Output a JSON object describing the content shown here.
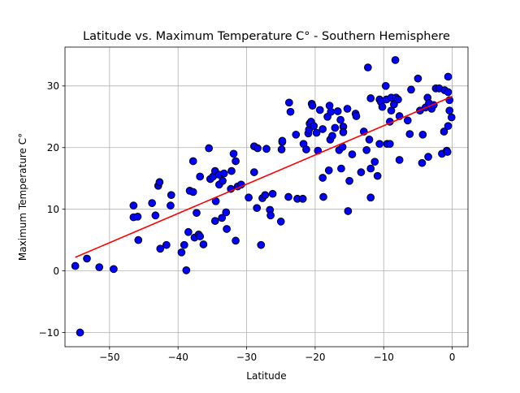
{
  "chart_data": {
    "type": "scatter",
    "title": "Latitude vs. Maximum Temperature C° - Southern Hemisphere",
    "xlabel": "Latitude",
    "ylabel": "Maximum Temperature C°",
    "xlim": [
      -56.5,
      2.3
    ],
    "ylim": [
      -12.3,
      36.3
    ],
    "xticks": [
      -50,
      -40,
      -30,
      -20,
      -10,
      0
    ],
    "xtick_labels": [
      "−50",
      "−40",
      "−30",
      "−20",
      "−10",
      "0"
    ],
    "yticks": [
      -10,
      0,
      10,
      20,
      30
    ],
    "ytick_labels": [
      "−10",
      "0",
      "10",
      "20",
      "30"
    ],
    "grid": true,
    "legend": false,
    "colors": {
      "points": "#0000ff",
      "point_edge": "#000000",
      "regression": "#ff0000",
      "grid": "#b0b0b0"
    },
    "regression_line": {
      "x": [
        -55,
        0
      ],
      "y": [
        2.2,
        28.3
      ]
    },
    "series": [
      {
        "points": [
          [
            -55,
            0.8
          ],
          [
            -54.3,
            -10
          ],
          [
            -53.3,
            2
          ],
          [
            -51.5,
            0.6
          ],
          [
            -49.4,
            0.3
          ],
          [
            -46.5,
            8.7
          ],
          [
            -46.5,
            10.6
          ],
          [
            -45.9,
            8.8
          ],
          [
            -45.8,
            5
          ],
          [
            -43.8,
            11
          ],
          [
            -43.3,
            9
          ],
          [
            -42.9,
            13.8
          ],
          [
            -42.7,
            14.4
          ],
          [
            -42.6,
            3.6
          ],
          [
            -41.7,
            4.2
          ],
          [
            -41.1,
            10.6
          ],
          [
            -41,
            12.3
          ],
          [
            -39.5,
            3
          ],
          [
            -39.1,
            4.2
          ],
          [
            -38.8,
            0.1
          ],
          [
            -38.5,
            6.3
          ],
          [
            -38.3,
            13
          ],
          [
            -37.8,
            17.8
          ],
          [
            -37.8,
            12.8
          ],
          [
            -37.6,
            5.4
          ],
          [
            -37.3,
            9.4
          ],
          [
            -37,
            5.9
          ],
          [
            -36.8,
            5.6
          ],
          [
            -36.8,
            15.3
          ],
          [
            -36.3,
            4.3
          ],
          [
            -35.5,
            19.9
          ],
          [
            -35.3,
            14.9
          ],
          [
            -34.9,
            15.3
          ],
          [
            -34.6,
            16.2
          ],
          [
            -34.6,
            8.1
          ],
          [
            -34.5,
            11.3
          ],
          [
            -34,
            14
          ],
          [
            -34,
            15.6
          ],
          [
            -33.6,
            8.6
          ],
          [
            -33.5,
            14.6
          ],
          [
            -33.3,
            15.8
          ],
          [
            -33,
            9.5
          ],
          [
            -32.9,
            6.8
          ],
          [
            -32.3,
            13.3
          ],
          [
            -32.2,
            16.2
          ],
          [
            -31.9,
            19
          ],
          [
            -31.6,
            17.8
          ],
          [
            -31.6,
            4.9
          ],
          [
            -31.3,
            13.7
          ],
          [
            -30.8,
            14
          ],
          [
            -29.7,
            11.9
          ],
          [
            -28.9,
            20.2
          ],
          [
            -28.9,
            16
          ],
          [
            -28.5,
            10.2
          ],
          [
            -28.4,
            19.9
          ],
          [
            -27.9,
            4.2
          ],
          [
            -27.7,
            11.8
          ],
          [
            -27.3,
            12.3
          ],
          [
            -27.1,
            19.8
          ],
          [
            -26.6,
            9.9
          ],
          [
            -26.5,
            9
          ],
          [
            -26.2,
            12.5
          ],
          [
            -25,
            8
          ],
          [
            -24.9,
            19.7
          ],
          [
            -24.8,
            20.9
          ],
          [
            -24.8,
            21.1
          ],
          [
            -23.9,
            12
          ],
          [
            -23.8,
            27.3
          ],
          [
            -23.6,
            25.8
          ],
          [
            -22.8,
            22.1
          ],
          [
            -22.6,
            11.7
          ],
          [
            -21.8,
            11.7
          ],
          [
            -21.7,
            20.6
          ],
          [
            -21.3,
            19.7
          ],
          [
            -21,
            22.3
          ],
          [
            -20.9,
            22.9
          ],
          [
            -20.8,
            23.9
          ],
          [
            -20.6,
            24.2
          ],
          [
            -20.5,
            27.1
          ],
          [
            -20.4,
            26.8
          ],
          [
            -20.2,
            23.5
          ],
          [
            -19.8,
            22.4
          ],
          [
            -19.6,
            19.5
          ],
          [
            -19.3,
            26.1
          ],
          [
            -18.9,
            23
          ],
          [
            -18.9,
            15.1
          ],
          [
            -18.8,
            12
          ],
          [
            -18.2,
            25
          ],
          [
            -18,
            16.3
          ],
          [
            -17.9,
            26.8
          ],
          [
            -17.8,
            21.3
          ],
          [
            -17.7,
            25.8
          ],
          [
            -17.5,
            21.9
          ],
          [
            -17.1,
            23.2
          ],
          [
            -16.7,
            25.9
          ],
          [
            -16.5,
            19.6
          ],
          [
            -16.3,
            24.5
          ],
          [
            -16.2,
            16.6
          ],
          [
            -16,
            20.1
          ],
          [
            -15.9,
            23.4
          ],
          [
            -15.9,
            22.5
          ],
          [
            -15.3,
            26.3
          ],
          [
            -15.2,
            9.7
          ],
          [
            -15,
            14.6
          ],
          [
            -14.6,
            18.9
          ],
          [
            -14.1,
            25.5
          ],
          [
            -14,
            25.1
          ],
          [
            -13.3,
            16
          ],
          [
            -12.9,
            22.6
          ],
          [
            -12.5,
            19.6
          ],
          [
            -12.3,
            33
          ],
          [
            -12.1,
            21.3
          ],
          [
            -11.9,
            28
          ],
          [
            -11.9,
            16.6
          ],
          [
            -11.9,
            11.9
          ],
          [
            -11.3,
            17.7
          ],
          [
            -10.9,
            15.4
          ],
          [
            -10.6,
            20.6
          ],
          [
            -10.6,
            27.8
          ],
          [
            -10.4,
            27.4
          ],
          [
            -10.2,
            26.6
          ],
          [
            -9.7,
            30
          ],
          [
            -9.6,
            27.8
          ],
          [
            -9.5,
            20.6
          ],
          [
            -9.1,
            20.6
          ],
          [
            -9.1,
            24.2
          ],
          [
            -8.9,
            26
          ],
          [
            -8.9,
            28.1
          ],
          [
            -8.5,
            27
          ],
          [
            -8.3,
            34.2
          ],
          [
            -8.2,
            28.1
          ],
          [
            -7.9,
            27.8
          ],
          [
            -7.7,
            18
          ],
          [
            -7.7,
            25.1
          ],
          [
            -6.5,
            24.4
          ],
          [
            -6.2,
            22.2
          ],
          [
            -6,
            29.4
          ],
          [
            -5,
            31.2
          ],
          [
            -4.7,
            26
          ],
          [
            -4.4,
            17.5
          ],
          [
            -4.3,
            22.1
          ],
          [
            -3.9,
            26.5
          ],
          [
            -3.6,
            28.1
          ],
          [
            -3.5,
            18.5
          ],
          [
            -3.4,
            27.2
          ],
          [
            -3,
            26.3
          ],
          [
            -2.7,
            26.9
          ],
          [
            -2.4,
            29.6
          ],
          [
            -1.9,
            29.6
          ],
          [
            -1.5,
            19
          ],
          [
            -1.2,
            22.6
          ],
          [
            -1.1,
            29.3
          ],
          [
            -0.8,
            19.5
          ],
          [
            -0.7,
            19.3
          ],
          [
            -0.6,
            31.5
          ],
          [
            -0.6,
            23.5
          ],
          [
            -0.6,
            29
          ],
          [
            -0.4,
            26
          ],
          [
            -0.4,
            27.7
          ],
          [
            -0.1,
            24.9
          ]
        ]
      }
    ]
  }
}
